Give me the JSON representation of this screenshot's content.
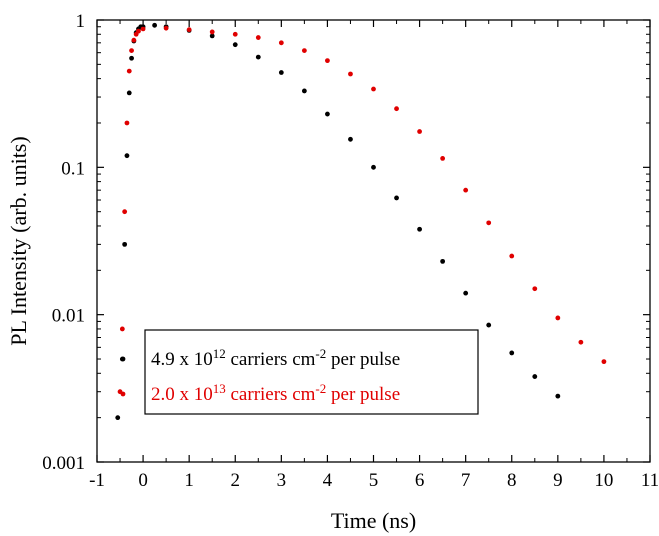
{
  "chart_data": {
    "type": "scatter",
    "title": "",
    "xlabel": "Time (ns)",
    "ylabel": "PL Intensity (arb. units)",
    "x_scale": "linear",
    "y_scale": "log",
    "xlim": [
      -1,
      11
    ],
    "ylim": [
      0.001,
      1
    ],
    "x_ticks": [
      -1,
      0,
      1,
      2,
      3,
      4,
      5,
      6,
      7,
      8,
      9,
      10,
      11
    ],
    "x_tick_labels": [
      "-1",
      "0",
      "1",
      "2",
      "3",
      "4",
      "5",
      "6",
      "7",
      "8",
      "9",
      "10",
      "11"
    ],
    "y_ticks": [
      0.001,
      0.01,
      0.1,
      1
    ],
    "y_tick_labels": [
      "0.001",
      "0.01",
      "0.1",
      "1"
    ],
    "grid": false,
    "legend_placement": "bottom-left",
    "legend": [
      {
        "prefix": "4.9 x 10",
        "exponent": "12",
        "middle": " carriers cm",
        "exponent2": "-2",
        "suffix": " per pulse",
        "color": "#000000"
      },
      {
        "prefix": "2.0 x 10",
        "exponent": "13",
        "middle": " carriers cm",
        "exponent2": "-2",
        "suffix": " per pulse",
        "color": "#e00000"
      }
    ],
    "series": [
      {
        "color": "#000000",
        "x": [
          -0.55,
          -0.45,
          -0.4,
          -0.35,
          -0.3,
          -0.25,
          -0.2,
          -0.15,
          -0.1,
          -0.05,
          0,
          0.25,
          0.5,
          1,
          1.5,
          2,
          2.5,
          3,
          3.5,
          4,
          4.5,
          5,
          5.5,
          6,
          6.5,
          7,
          7.5,
          8,
          8.5,
          9
        ],
        "y": [
          0.002,
          0.005,
          0.03,
          0.12,
          0.32,
          0.55,
          0.72,
          0.82,
          0.87,
          0.9,
          0.9,
          0.92,
          0.9,
          0.85,
          0.78,
          0.68,
          0.56,
          0.44,
          0.33,
          0.23,
          0.155,
          0.1,
          0.062,
          0.038,
          0.023,
          0.014,
          0.0085,
          0.0055,
          0.0038,
          0.0028
        ]
      },
      {
        "color": "#e00000",
        "x": [
          -0.5,
          -0.45,
          -0.4,
          -0.35,
          -0.3,
          -0.25,
          -0.2,
          -0.15,
          -0.1,
          0,
          0.5,
          1,
          1.5,
          2,
          2.5,
          3,
          3.5,
          4,
          4.5,
          5,
          5.5,
          6,
          6.5,
          7,
          7.5,
          8,
          8.5,
          9,
          9.5,
          10
        ],
        "y": [
          0.003,
          0.008,
          0.05,
          0.2,
          0.45,
          0.62,
          0.73,
          0.8,
          0.84,
          0.87,
          0.88,
          0.86,
          0.83,
          0.8,
          0.76,
          0.7,
          0.62,
          0.53,
          0.43,
          0.34,
          0.25,
          0.175,
          0.115,
          0.07,
          0.042,
          0.025,
          0.015,
          0.0095,
          0.0065,
          0.0048
        ]
      }
    ]
  }
}
